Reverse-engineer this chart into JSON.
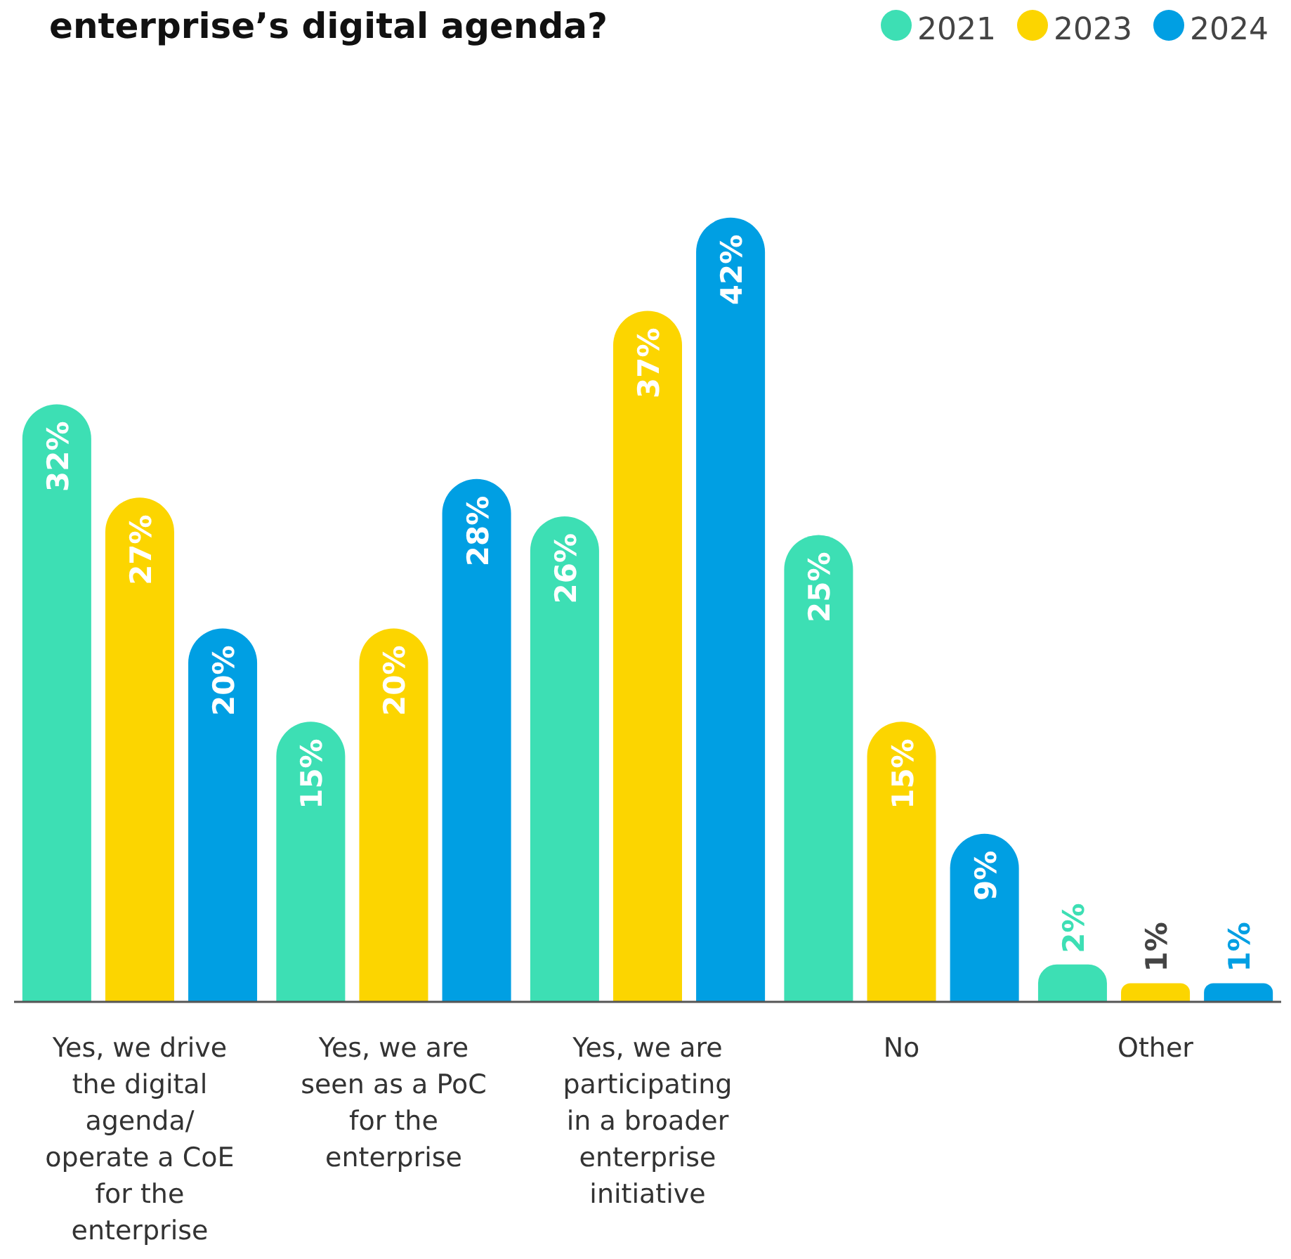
{
  "chart_data": {
    "type": "bar",
    "title": "enterprise’s digital agenda?",
    "categories": [
      "Yes, we drive the digital agenda/ operate a CoE for the enterprise",
      "Yes, we are seen as a PoC for the enterprise",
      "Yes, we are participating in a broader enterprise initiative",
      "No",
      "Other"
    ],
    "series": [
      {
        "name": "2021",
        "color": "#3ddfb4",
        "values": [
          32,
          15,
          26,
          25,
          2
        ],
        "value_labels": [
          "32%",
          "15%",
          "26%",
          "25%",
          "2%"
        ]
      },
      {
        "name": "2023",
        "color": "#fcd500",
        "values": [
          27,
          20,
          37,
          15,
          1
        ],
        "value_labels": [
          "27%",
          "20%",
          "37%",
          "15%",
          "1%"
        ]
      },
      {
        "name": "2024",
        "color": "#009fe3",
        "values": [
          20,
          28,
          42,
          9,
          1
        ],
        "value_labels": [
          "20%",
          "28%",
          "42%",
          "9%",
          "1%"
        ]
      }
    ],
    "legend": "top right"
  }
}
